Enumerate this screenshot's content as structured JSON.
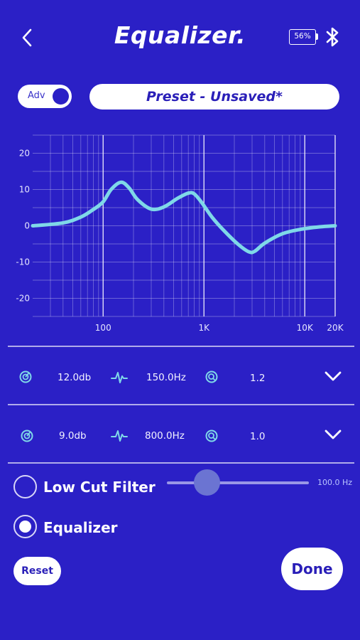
{
  "header": {
    "title": "Equalizer.",
    "battery": "56%"
  },
  "controls": {
    "adv_label": "Adv",
    "adv_enabled": true,
    "preset_label": "Preset - Unsaved*"
  },
  "chart_data": {
    "type": "line",
    "x_scale": "log",
    "xlim": [
      20,
      20000
    ],
    "ylim": [
      -25,
      25
    ],
    "xticks": [
      {
        "value": 100,
        "label": "100"
      },
      {
        "value": 1000,
        "label": "1K"
      },
      {
        "value": 10000,
        "label": "10K"
      },
      {
        "value": 20000,
        "label": "20K"
      }
    ],
    "yticks": [
      {
        "value": 20,
        "label": "20"
      },
      {
        "value": 10,
        "label": "10"
      },
      {
        "value": 0,
        "label": "0"
      },
      {
        "value": -10,
        "label": "-10"
      },
      {
        "value": -20,
        "label": "-20"
      }
    ],
    "grid": true,
    "series": [
      {
        "color": "#7FD8E8",
        "x": [
          20,
          40,
          60,
          80,
          100,
          120,
          150,
          180,
          220,
          300,
          400,
          550,
          700,
          800,
          950,
          1200,
          1600,
          2200,
          2800,
          3200,
          4000,
          6000,
          9000,
          14000,
          20000
        ],
        "y": [
          0,
          0.8,
          2.4,
          4.5,
          6.6,
          10,
          12,
          10.5,
          7.2,
          4.6,
          5.2,
          7.6,
          9,
          8.8,
          6.4,
          2.4,
          -1.5,
          -5.2,
          -7.2,
          -7,
          -4.8,
          -2.2,
          -1,
          -0.3,
          0
        ]
      }
    ]
  },
  "bands": [
    {
      "gain": "12.0db",
      "freq": "150.0Hz",
      "q": "1.2"
    },
    {
      "gain": "9.0db",
      "freq": "800.0Hz",
      "q": "1.0"
    }
  ],
  "low_cut": {
    "label": "Low Cut Filter",
    "selected": false,
    "value_label": "100.0 Hz",
    "slider_fraction": 0.28
  },
  "equalizer_option": {
    "label": "Equalizer",
    "selected": true
  },
  "buttons": {
    "reset": "Reset",
    "done": "Done"
  },
  "colors": {
    "background": "#2B20C6",
    "curve": "#7FD8E8",
    "icon": "#7FD8E8",
    "button_text": "#2A1FB8"
  }
}
